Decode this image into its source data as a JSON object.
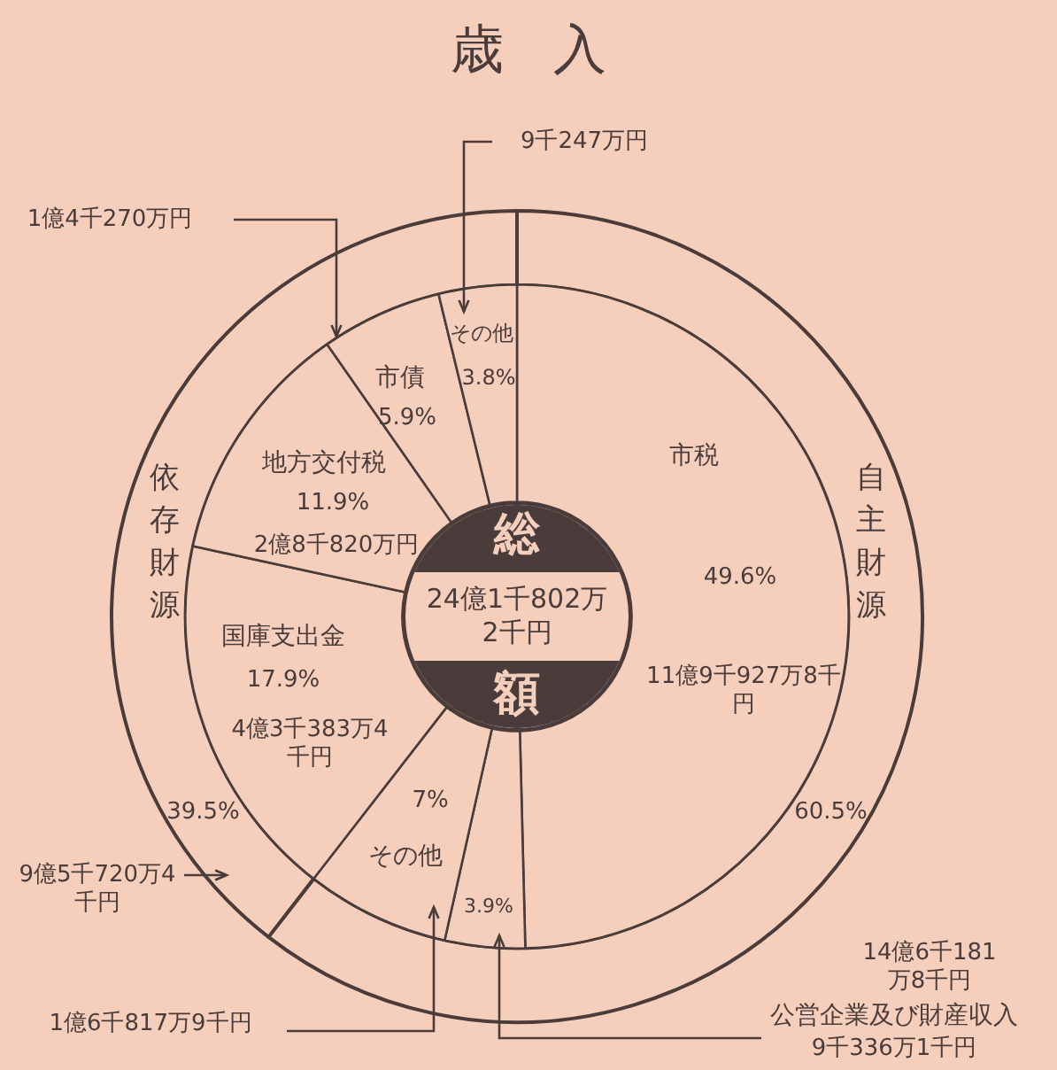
{
  "chart_data": [
    {
      "type": "donut",
      "title": "歳入",
      "categories": [
        "自主財源",
        "依存財源"
      ],
      "values": [
        60.5,
        39.5
      ],
      "colors": [
        "#f6cfbc",
        "#f6cfbc"
      ],
      "value_labels": [
        "60.5%",
        "39.5%"
      ],
      "annotations": [
        "14億6千181万8千円",
        "9億5千720万4千円",
        "総額",
        "24億1千802万2千円"
      ],
      "legend": false
    },
    {
      "type": "donut",
      "categories": [
        "市税",
        "公営企業及び財産収入",
        "その他",
        "国庫支出金",
        "地方交付税",
        "市債",
        "その他"
      ],
      "values": [
        49.6,
        3.9,
        7,
        17.9,
        11.9,
        5.9,
        3.8
      ],
      "colors": [
        "#f6cfbc",
        "#f6cfbc",
        "#f6cfbc",
        "#f6cfbc",
        "#f6cfbc",
        "#f6cfbc",
        "#f6cfbc"
      ],
      "value_labels": [
        "49.6%",
        "3.9%",
        "7%",
        "17.9%",
        "11.9%",
        "5.9%",
        "3.8%"
      ],
      "annotations": [
        "11億9千927万8千円",
        "9千336万1千円",
        "1億6千817万9千円",
        "4億3千383万4千円",
        "2億8千820万円",
        "1億4千270万円",
        "9千247万円"
      ],
      "legend": false
    }
  ]
}
